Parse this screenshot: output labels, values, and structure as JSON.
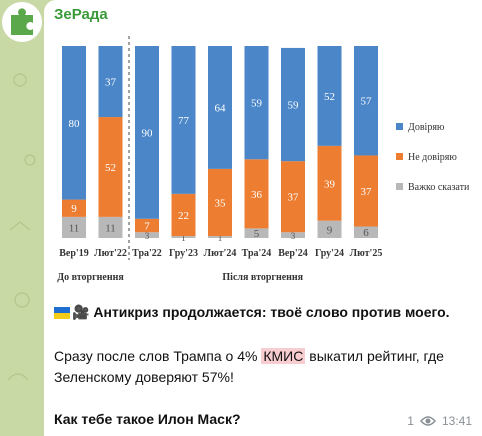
{
  "channel": {
    "name": "ЗеРада"
  },
  "message": {
    "line1": "Антикриз продолжается: твоё слово против моего.",
    "line2_prefix": "Сразу после слов Трампа о 4%",
    "line2_highlight": "КМИС",
    "line2_suffix": "выкатил рейтинг, где Зеленскому доверяют 57%!",
    "line3": "Как тебе такое Илон Маск?"
  },
  "meta": {
    "views": "1",
    "time": "13:41"
  },
  "colors": {
    "trust": "#4a86c8",
    "distrust": "#ed7d31",
    "hard": "#b8b8b8",
    "accent": "#3a9a3a"
  },
  "chart_data": {
    "type": "bar",
    "stacked": true,
    "categories": [
      "Вер'19",
      "Лют'22",
      "Тра'22",
      "Гру'23",
      "Лют'24",
      "Тра'24",
      "Вер'24",
      "Гру'24",
      "Лют'25"
    ],
    "series": [
      {
        "name": "Довіряю",
        "color": "#4a86c8",
        "values": [
          80,
          37,
          90,
          77,
          64,
          59,
          59,
          52,
          57
        ]
      },
      {
        "name": "Не довіряю",
        "color": "#ed7d31",
        "values": [
          9,
          52,
          7,
          22,
          35,
          36,
          37,
          39,
          37
        ]
      },
      {
        "name": "Важко сказати",
        "color": "#b8b8b8",
        "values": [
          11,
          11,
          3,
          1,
          1,
          5,
          3,
          9,
          6
        ]
      }
    ],
    "group_labels": [
      "До вторгнення",
      "Після вторгнення"
    ],
    "ylim": [
      0,
      100
    ],
    "legend": "right"
  }
}
